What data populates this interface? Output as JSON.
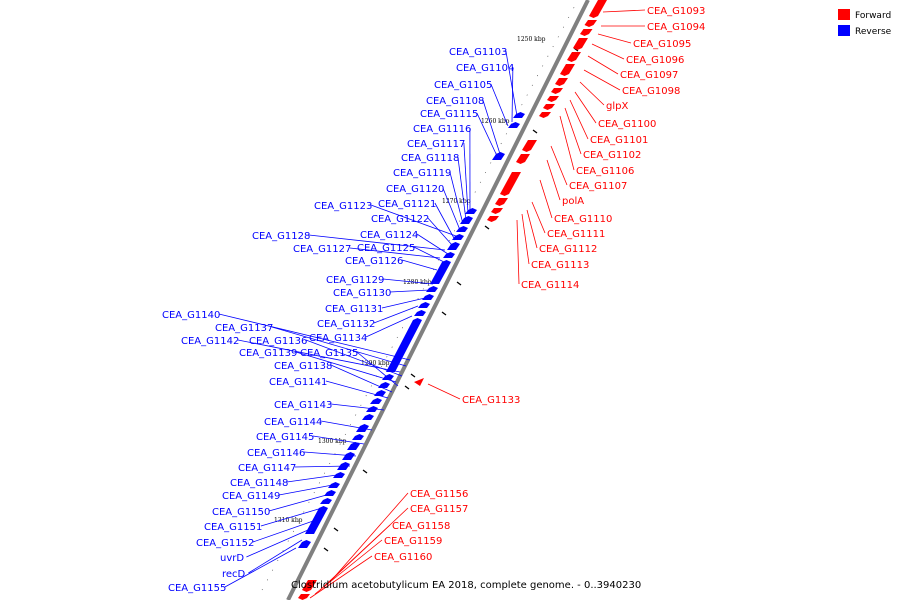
{
  "caption": "Clostridium acetobutylicum EA 2018, complete genome. - 0..3940230",
  "legend": [
    {
      "label": "Forward",
      "color": "#ff0000"
    },
    {
      "label": "Reverse",
      "color": "#0000ff"
    }
  ],
  "colors": {
    "forward": "#ff0000",
    "reverse": "#0000ff",
    "backbone": "#808080",
    "rule": "#000000"
  },
  "scale_ticks": [
    "1250 kbp",
    "1260 kbp",
    "1270 kbp",
    "1280 kbp",
    "1290 kbp",
    "1300 kbp",
    "1310 kbp"
  ],
  "forward_genes": [
    "CEA_G1093",
    "CEA_G1094",
    "CEA_G1095",
    "CEA_G1096",
    "CEA_G1097",
    "CEA_G1098",
    "glpX",
    "CEA_G1100",
    "CEA_G1101",
    "CEA_G1102",
    "CEA_G1106",
    "CEA_G1107",
    "polA",
    "CEA_G1110",
    "CEA_G1111",
    "CEA_G1112",
    "CEA_G1113",
    "CEA_G1114",
    "CEA_G1133",
    "CEA_G1156",
    "CEA_G1157",
    "CEA_G1158",
    "CEA_G1159",
    "CEA_G1160"
  ],
  "reverse_genes": [
    "CEA_G1103",
    "CEA_G1104",
    "CEA_G1105",
    "CEA_G1108",
    "CEA_G1115",
    "CEA_G1116",
    "CEA_G1117",
    "CEA_G1118",
    "CEA_G1119",
    "CEA_G1120",
    "CEA_G1123",
    "CEA_G1121",
    "CEA_G1122",
    "CEA_G1128",
    "CEA_G1124",
    "CEA_G1127",
    "CEA_G1125",
    "CEA_G1126",
    "CEA_G1129",
    "CEA_G1130",
    "CEA_G1131",
    "CEA_G1140",
    "CEA_G1132",
    "CEA_G1137",
    "CEA_G1142",
    "CEA_G1136",
    "CEA_G1134",
    "CEA_G1139",
    "CEA_G1135",
    "CEA_G1138",
    "CEA_G1141",
    "CEA_G1143",
    "CEA_G1144",
    "CEA_G1145",
    "CEA_G1146",
    "CEA_G1147",
    "CEA_G1148",
    "CEA_G1149",
    "CEA_G1150",
    "CEA_G1151",
    "CEA_G1152",
    "uvrD",
    "recD",
    "CEA_G1155"
  ]
}
